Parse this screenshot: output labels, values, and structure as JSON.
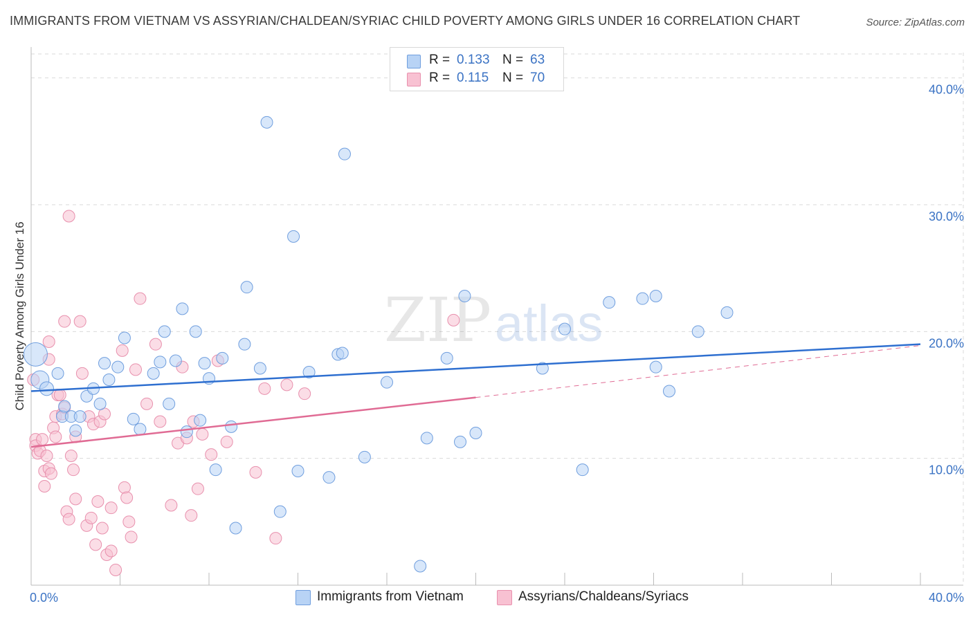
{
  "title": "IMMIGRANTS FROM VIETNAM VS ASSYRIAN/CHALDEAN/SYRIAC CHILD POVERTY AMONG GIRLS UNDER 16 CORRELATION CHART",
  "source": "Source: ZipAtlas.com",
  "watermark": "ZIPatlas",
  "legend": {
    "series1": {
      "r_label": "R =",
      "r_value": "0.133",
      "n_label": "N =",
      "n_value": "63"
    },
    "series2": {
      "r_label": "R =",
      "r_value": "0.115",
      "n_label": "N =",
      "n_value": "70"
    }
  },
  "colors": {
    "blue_fill": "#b8d3f5",
    "blue_stroke": "#6f9ede",
    "blue_line": "#2e6fd0",
    "pink_fill": "#f8c1d2",
    "pink_stroke": "#e890ad",
    "pink_line": "#e06b94",
    "tick": "#3b73c4",
    "grid": "#d9d9d9"
  },
  "chart_data": {
    "type": "scatter",
    "title": "IMMIGRANTS FROM VIETNAM VS ASSYRIAN/CHALDEAN/SYRIAC CHILD POVERTY AMONG GIRLS UNDER 16 CORRELATION CHART",
    "xlabel": "",
    "ylabel": "Child Poverty Among Girls Under 16",
    "xlim": [
      0,
      40
    ],
    "ylim": [
      0,
      42
    ],
    "x_tick_labels": [
      "0.0%",
      "40.0%"
    ],
    "y_ticks": [
      10,
      20,
      30,
      40
    ],
    "y_tick_labels": [
      "10.0%",
      "20.0%",
      "30.0%",
      "40.0%"
    ],
    "grid": true,
    "legend_position": "top-center",
    "series": [
      {
        "name": "Immigrants from Vietnam",
        "color": "blue",
        "trend": {
          "x": [
            0,
            40
          ],
          "y": [
            15.3,
            19.0
          ],
          "dashed_from": null
        },
        "points": [
          [
            0.2,
            18.2,
            "large"
          ],
          [
            0.4,
            16.2,
            "medium"
          ],
          [
            0.7,
            15.5,
            "small"
          ],
          [
            1.2,
            16.7
          ],
          [
            1.4,
            13.3
          ],
          [
            1.5,
            14.1
          ],
          [
            1.8,
            13.3
          ],
          [
            2.0,
            12.2
          ],
          [
            2.2,
            13.3
          ],
          [
            2.5,
            14.9
          ],
          [
            2.8,
            15.5
          ],
          [
            3.1,
            14.3
          ],
          [
            3.3,
            17.5
          ],
          [
            3.5,
            16.2
          ],
          [
            3.9,
            17.2
          ],
          [
            4.2,
            19.5
          ],
          [
            4.6,
            13.1
          ],
          [
            4.9,
            12.3
          ],
          [
            5.5,
            16.7
          ],
          [
            5.8,
            17.6
          ],
          [
            6.0,
            20.0
          ],
          [
            6.2,
            14.3
          ],
          [
            6.5,
            17.7
          ],
          [
            6.8,
            21.8
          ],
          [
            7.0,
            12.1
          ],
          [
            7.4,
            20.0
          ],
          [
            7.6,
            13.0
          ],
          [
            7.8,
            17.5
          ],
          [
            8.0,
            16.3
          ],
          [
            8.3,
            9.1
          ],
          [
            8.6,
            17.9
          ],
          [
            9.0,
            12.5
          ],
          [
            9.2,
            4.5
          ],
          [
            9.6,
            19.0
          ],
          [
            9.7,
            23.5
          ],
          [
            10.3,
            17.1
          ],
          [
            10.6,
            36.5
          ],
          [
            11.2,
            5.8
          ],
          [
            11.8,
            27.5
          ],
          [
            12.0,
            9.0
          ],
          [
            12.5,
            16.8
          ],
          [
            13.4,
            8.5
          ],
          [
            13.8,
            18.2
          ],
          [
            14.0,
            18.3
          ],
          [
            14.1,
            34.0
          ],
          [
            15.0,
            10.1
          ],
          [
            16.0,
            16.0
          ],
          [
            17.5,
            1.5
          ],
          [
            17.8,
            11.6
          ],
          [
            18.7,
            17.9
          ],
          [
            19.3,
            11.3
          ],
          [
            19.5,
            22.8
          ],
          [
            23.0,
            17.1
          ],
          [
            24.0,
            20.2
          ],
          [
            24.8,
            9.1
          ],
          [
            26.0,
            22.3
          ],
          [
            27.5,
            22.6
          ],
          [
            28.1,
            22.8
          ],
          [
            28.1,
            17.2
          ],
          [
            28.7,
            15.3
          ],
          [
            30.0,
            20.0
          ],
          [
            31.3,
            21.5
          ],
          [
            20.0,
            12.0
          ]
        ]
      },
      {
        "name": "Assyrians/Chaldeans/Syriacs",
        "color": "pink",
        "trend": {
          "x": [
            0,
            20
          ],
          "y": [
            10.9,
            14.8
          ],
          "dashed_to": [
            40,
            18.9
          ]
        },
        "points": [
          [
            0.1,
            16.2
          ],
          [
            0.2,
            11.5
          ],
          [
            0.2,
            11.0
          ],
          [
            0.3,
            10.4
          ],
          [
            0.4,
            10.6
          ],
          [
            0.5,
            11.5
          ],
          [
            0.6,
            7.8
          ],
          [
            0.6,
            9.0
          ],
          [
            0.7,
            10.2
          ],
          [
            0.8,
            9.2
          ],
          [
            0.8,
            19.2
          ],
          [
            0.8,
            17.8
          ],
          [
            0.9,
            8.8
          ],
          [
            1.0,
            12.4
          ],
          [
            1.1,
            11.7
          ],
          [
            1.1,
            13.3
          ],
          [
            1.2,
            15.0
          ],
          [
            1.3,
            15.0
          ],
          [
            1.4,
            13.5
          ],
          [
            1.5,
            20.8
          ],
          [
            1.5,
            14.0
          ],
          [
            1.6,
            5.8
          ],
          [
            1.7,
            5.2
          ],
          [
            1.7,
            29.1
          ],
          [
            1.8,
            10.2
          ],
          [
            1.9,
            9.1
          ],
          [
            2.0,
            6.8
          ],
          [
            2.0,
            11.7
          ],
          [
            2.2,
            20.8
          ],
          [
            2.3,
            16.7
          ],
          [
            2.5,
            4.7
          ],
          [
            2.6,
            13.3
          ],
          [
            2.7,
            5.3
          ],
          [
            2.8,
            12.7
          ],
          [
            2.9,
            3.2
          ],
          [
            3.0,
            6.6
          ],
          [
            3.1,
            12.9
          ],
          [
            3.2,
            4.5
          ],
          [
            3.3,
            13.5
          ],
          [
            3.4,
            2.4
          ],
          [
            3.6,
            6.1
          ],
          [
            3.6,
            2.7
          ],
          [
            3.8,
            1.2
          ],
          [
            4.1,
            18.5
          ],
          [
            4.2,
            7.7
          ],
          [
            4.3,
            6.9
          ],
          [
            4.4,
            5.0
          ],
          [
            4.5,
            3.8
          ],
          [
            4.7,
            17.0
          ],
          [
            4.9,
            22.6
          ],
          [
            5.2,
            14.3
          ],
          [
            5.6,
            19.0
          ],
          [
            5.8,
            12.9
          ],
          [
            6.3,
            6.3
          ],
          [
            6.6,
            11.2
          ],
          [
            6.8,
            17.2
          ],
          [
            7.0,
            11.6
          ],
          [
            7.2,
            5.5
          ],
          [
            7.3,
            12.9
          ],
          [
            7.5,
            7.6
          ],
          [
            7.7,
            11.9
          ],
          [
            8.1,
            10.3
          ],
          [
            8.4,
            17.7
          ],
          [
            8.8,
            11.3
          ],
          [
            10.1,
            8.9
          ],
          [
            10.5,
            15.5
          ],
          [
            11.0,
            3.7
          ],
          [
            11.5,
            15.8
          ],
          [
            12.3,
            15.1
          ],
          [
            19.0,
            20.9
          ]
        ]
      }
    ]
  },
  "bottom_legend": {
    "series1_label": "Immigrants from Vietnam",
    "series2_label": "Assyrians/Chaldeans/Syriacs"
  }
}
